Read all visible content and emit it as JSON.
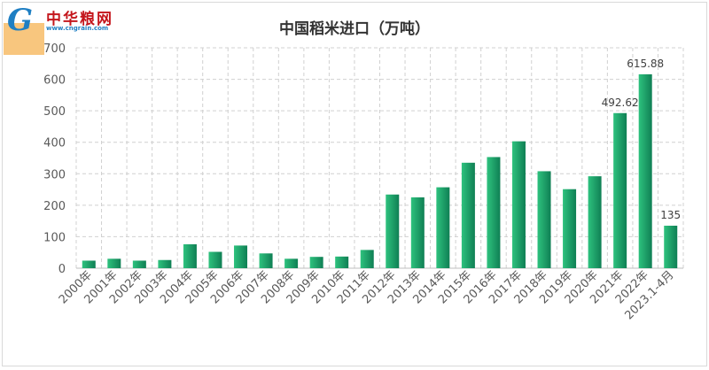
{
  "logo": {
    "mark": "G",
    "brand": "中华粮网",
    "url": "www.cngrain.com"
  },
  "chart_data": {
    "type": "bar",
    "title": "中国稻米进口（万吨）",
    "xlabel": "",
    "ylabel": "",
    "ylim": [
      0,
      700
    ],
    "yticks": [
      0,
      100,
      200,
      300,
      400,
      500,
      600,
      700
    ],
    "grid": true,
    "legend": "none",
    "categories": [
      "2000年",
      "2001年",
      "2002年",
      "2003年",
      "2004年",
      "2005年",
      "2006年",
      "2007年",
      "2008年",
      "2009年",
      "2010年",
      "2011年",
      "2012年",
      "2013年",
      "2014年",
      "2015年",
      "2016年",
      "2017年",
      "2018年",
      "2019年",
      "2020年",
      "2021年",
      "2022年",
      "2023.1-4月"
    ],
    "values": [
      24,
      30,
      24,
      26,
      76,
      52,
      72,
      47,
      30,
      36,
      37,
      58,
      234,
      225,
      257,
      335,
      353,
      403,
      308,
      251,
      292,
      492.62,
      615.88,
      135
    ],
    "data_labels": [
      {
        "index": 21,
        "text": "492.62"
      },
      {
        "index": 22,
        "text": "615.88"
      },
      {
        "index": 23,
        "text": "135"
      }
    ],
    "colors": {
      "bar_left": "#2ec27e",
      "bar_right": "#0f7f54",
      "grid": "#d0d0d0"
    }
  }
}
